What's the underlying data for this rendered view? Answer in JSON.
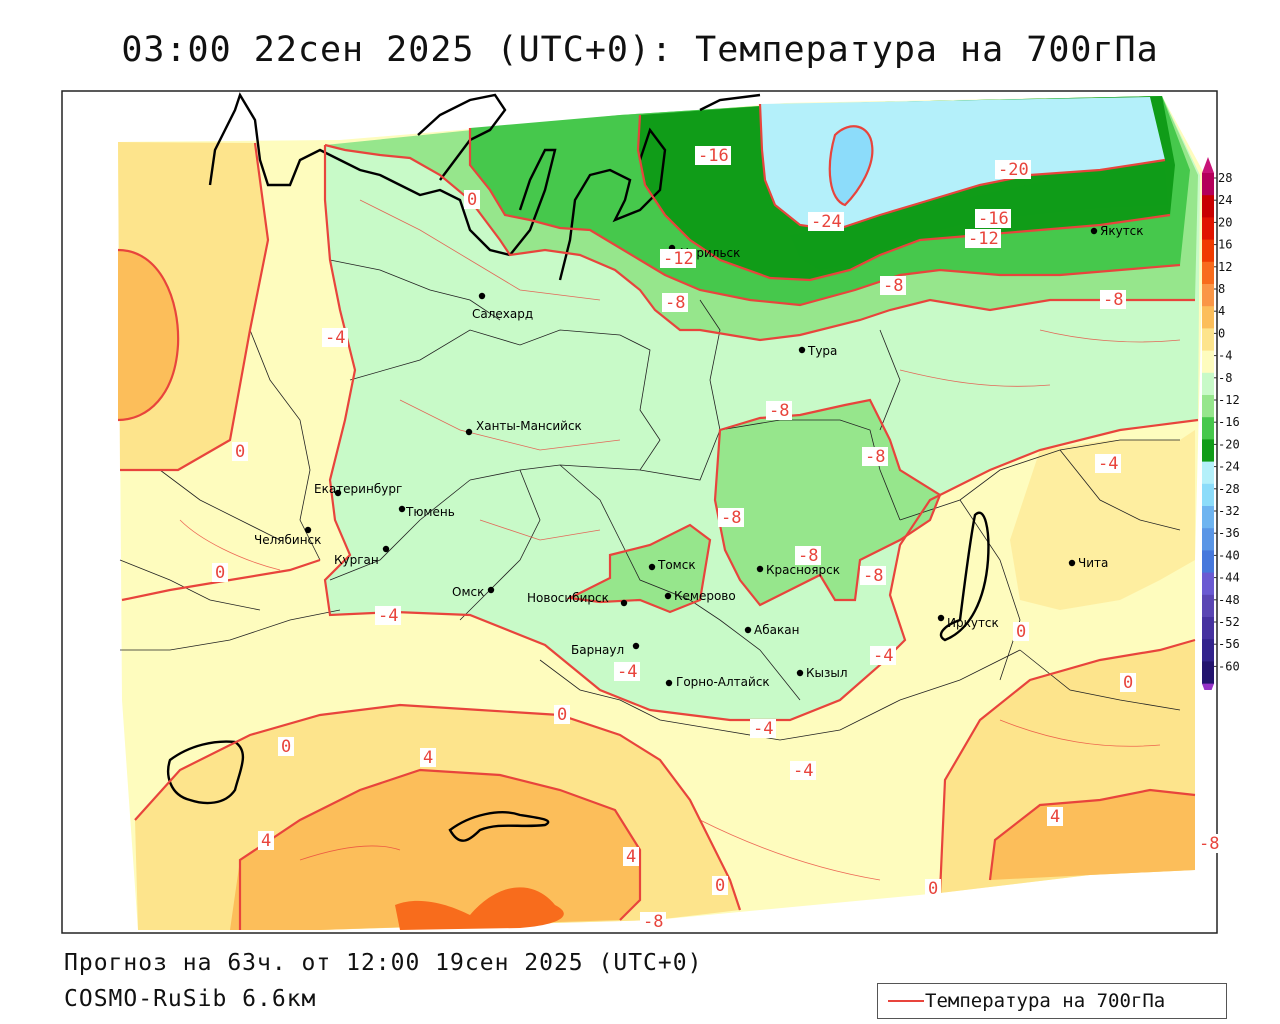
{
  "title": "03:00 22сен 2025 (UTC+0): Температура на 700гПа",
  "footer": {
    "forecast_line": "Прогноз на 63ч. от 12:00 19сен 2025 (UTC+0)",
    "model_line": "COSMO-RuSib 6.6км"
  },
  "legend": {
    "label": "Температура на 700гПа",
    "line_color": "#e8443c"
  },
  "colorbar": {
    "ticks": [
      "28",
      "24",
      "20",
      "16",
      "12",
      "8",
      "4",
      "0",
      "-4",
      "-8",
      "-12",
      "-16",
      "-20",
      "-24",
      "-28",
      "-32",
      "-36",
      "-40",
      "-44",
      "-48",
      "-52",
      "-56",
      "-60"
    ],
    "colors": [
      "#b4005a",
      "#c80000",
      "#e01400",
      "#f03c00",
      "#f86c1c",
      "#fa9646",
      "#fcbe5a",
      "#fde48c",
      "#fefcbe",
      "#c8fac8",
      "#96e68c",
      "#46c84c",
      "#109c18",
      "#b4f0fa",
      "#8cdcfa",
      "#6eb4f0",
      "#5a96e6",
      "#4678dc",
      "#6a5ad2",
      "#5a46b4",
      "#4632a0",
      "#32238c",
      "#23146e"
    ],
    "top_color": "#c81478",
    "bottom_color": "#9632c8"
  },
  "cities": [
    {
      "name": "Салехард"
    },
    {
      "name": "Норильск"
    },
    {
      "name": "Тура"
    },
    {
      "name": "Якутск"
    },
    {
      "name": "Ханты-Мансийск"
    },
    {
      "name": "Екатеринбург"
    },
    {
      "name": "Тюмень"
    },
    {
      "name": "Челябинск"
    },
    {
      "name": "Курган"
    },
    {
      "name": "Омск"
    },
    {
      "name": "Томск"
    },
    {
      "name": "Новосибирск"
    },
    {
      "name": "Кемерово"
    },
    {
      "name": "Красноярск"
    },
    {
      "name": "Абакан"
    },
    {
      "name": "Барнаул"
    },
    {
      "name": "Кызыл"
    },
    {
      "name": "Горно-Алтайск"
    },
    {
      "name": "Иркутск"
    },
    {
      "name": "Чита"
    }
  ],
  "isotherm_labels": [
    "-16",
    "-20",
    "-24",
    "-16",
    "-12",
    "-12",
    "-8",
    "-8",
    "-8",
    "-4",
    "-8",
    "-8",
    "-8",
    "-8",
    "-8",
    "-4",
    "-4",
    "-4",
    "-4",
    "-4",
    "-4",
    "0",
    "0",
    "0",
    "0",
    "0",
    "0",
    "0",
    "4",
    "4",
    "4",
    "4",
    "0",
    "0",
    "-8",
    "-8",
    "-8"
  ]
}
